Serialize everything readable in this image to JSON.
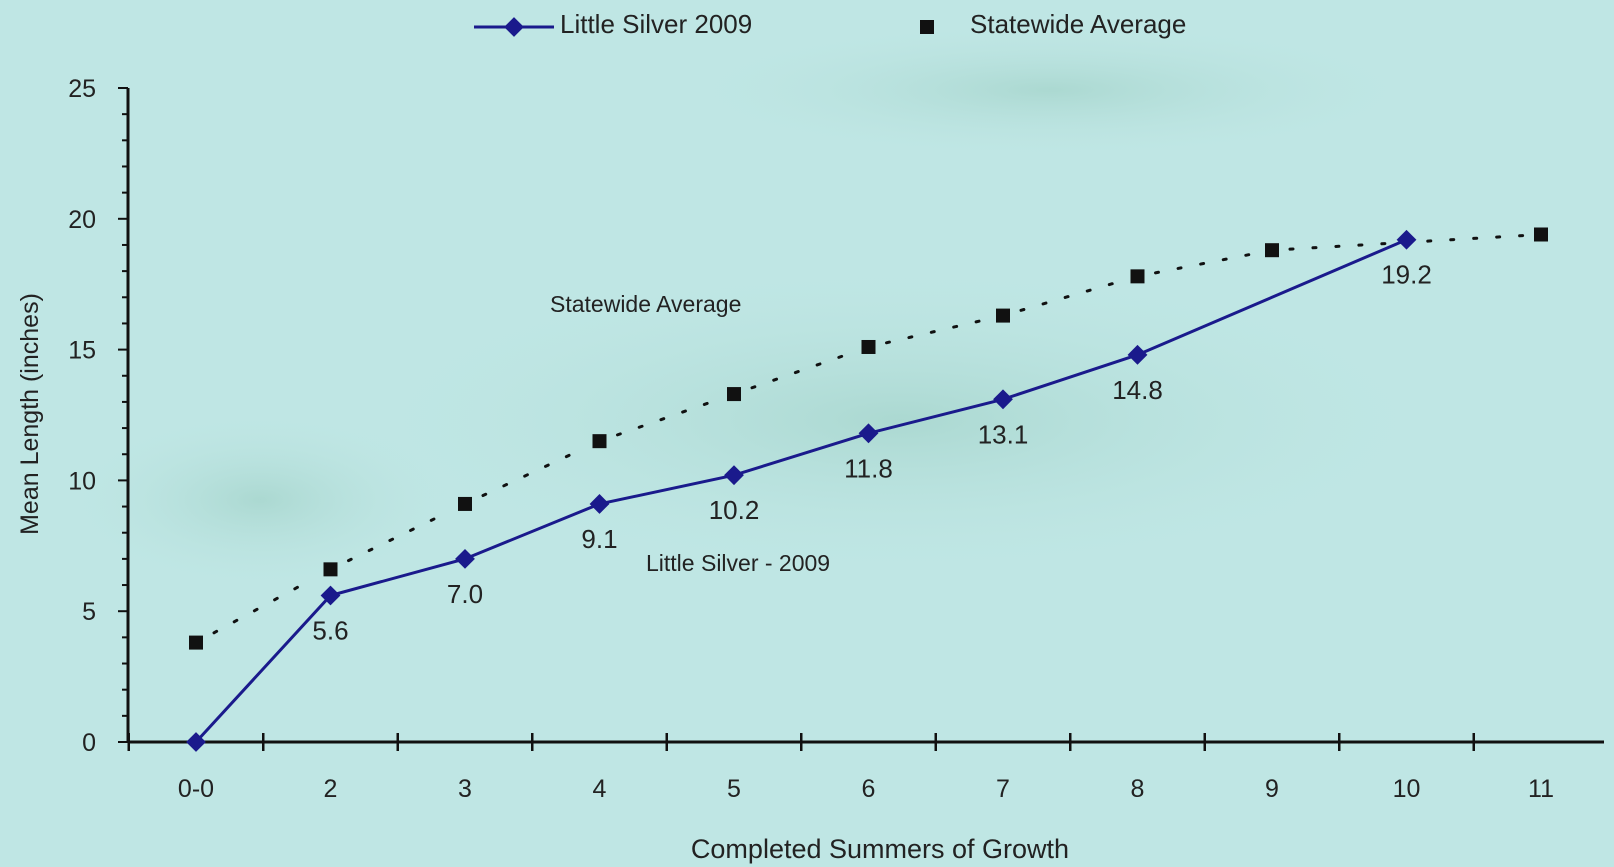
{
  "colors": {
    "background": "#bfe6e4",
    "series_line": "#1a1a8c",
    "statewide_marker": "#111111",
    "axis": "#111111",
    "text": "#222222"
  },
  "chart_data": {
    "type": "line",
    "title": "",
    "xlabel": "Completed Summers of Growth",
    "ylabel": "Mean Length (inches)",
    "ylim": [
      0,
      25
    ],
    "yticks": [
      0,
      5,
      10,
      15,
      20,
      25
    ],
    "categories": [
      "0-0",
      "2",
      "3",
      "4",
      "5",
      "6",
      "7",
      "8",
      "9",
      "10",
      "11"
    ],
    "legend": {
      "placement": "top-center",
      "entries": [
        "Little Silver 2009",
        "Statewide Average"
      ]
    },
    "series": [
      {
        "name": "Little Silver 2009",
        "style": "solid-line-diamond",
        "values": [
          0,
          5.6,
          7.0,
          9.1,
          10.2,
          11.8,
          13.1,
          14.8,
          null,
          19.2,
          null
        ],
        "data_labels": [
          "",
          "5.6",
          "7.0",
          "9.1",
          "10.2",
          "11.8",
          "13.1",
          "14.8",
          "",
          "19.2",
          ""
        ]
      },
      {
        "name": "Statewide Average",
        "style": "dotted-line-square",
        "values": [
          3.8,
          6.6,
          9.1,
          11.5,
          13.3,
          15.1,
          16.3,
          17.8,
          18.8,
          null,
          19.4
        ]
      }
    ],
    "annotations": [
      "Statewide Average",
      "Little Silver - 2009"
    ]
  }
}
